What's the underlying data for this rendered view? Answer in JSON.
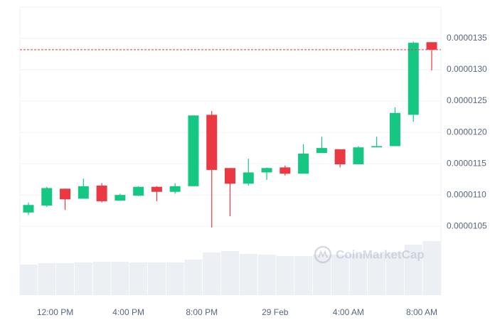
{
  "chart_data": {
    "type": "candlestick",
    "categories": [
      null,
      null,
      "12:00 PM",
      null,
      null,
      null,
      "4:00 PM",
      null,
      null,
      null,
      "8:00 PM",
      null,
      null,
      null,
      "29 Feb",
      null,
      null,
      null,
      "4:00 AM",
      null,
      null,
      null,
      "8:00 AM"
    ],
    "open": [
      1.072e-05,
      1.083e-05,
      1.11e-05,
      1.094e-05,
      1.115e-05,
      1.091e-05,
      1.099e-05,
      1.113e-05,
      1.105e-05,
      1.114e-05,
      1.228e-05,
      1.143e-05,
      1.118e-05,
      1.136e-05,
      1.144e-05,
      1.134e-05,
      1.167e-05,
      1.173e-05,
      1.149e-05,
      1.176e-05,
      1.178e-05,
      1.228e-05,
      1.344e-05
    ],
    "high": [
      1.088e-05,
      1.113e-05,
      1.11e-05,
      1.126e-05,
      1.119e-05,
      1.102e-05,
      1.114e-05,
      1.114e-05,
      1.119e-05,
      1.227e-05,
      1.234e-05,
      1.143e-05,
      1.158e-05,
      1.144e-05,
      1.147e-05,
      1.181e-05,
      1.193e-05,
      1.173e-05,
      1.178e-05,
      1.193e-05,
      1.24e-05,
      1.345e-05,
      1.344e-05
    ],
    "low": [
      1.068e-05,
      1.081e-05,
      1.076e-05,
      1.094e-05,
      1.088e-05,
      1.091e-05,
      1.098e-05,
      1.09e-05,
      1.102e-05,
      1.114e-05,
      1.048e-05,
      1.066e-05,
      1.115e-05,
      1.124e-05,
      1.131e-05,
      1.134e-05,
      1.167e-05,
      1.144e-05,
      1.149e-05,
      1.176e-05,
      1.178e-05,
      1.217e-05,
      1.299e-05
    ],
    "close": [
      1.084e-05,
      1.111e-05,
      1.093e-05,
      1.114e-05,
      1.09e-05,
      1.1e-05,
      1.113e-05,
      1.105e-05,
      1.114e-05,
      1.227e-05,
      1.14e-05,
      1.118e-05,
      1.136e-05,
      1.143e-05,
      1.134e-05,
      1.166e-05,
      1.175e-05,
      1.149e-05,
      1.176e-05,
      1.178e-05,
      1.231e-05,
      1.343e-05,
      1.332e-05
    ],
    "volumes": [
      43,
      45,
      45,
      46,
      47,
      47,
      46,
      46,
      46,
      50,
      60,
      62,
      58,
      57,
      55,
      55,
      57,
      57,
      58,
      58,
      60,
      71,
      76
    ],
    "up_color": "#16c784",
    "down_color": "#ea3943",
    "volume_color": "#eceff3",
    "current_price": 1.332e-05,
    "ylim": [
      9.4e-06,
      1.4e-05
    ],
    "yticks": [
      1.05e-05,
      {
        "value": 1.1e-05,
        "label": "0.0000110"
      },
      1.15e-05,
      {
        "value": 1.2e-05,
        "label": "0.0000120"
      },
      1.25e-05,
      {
        "value": 1.3e-05,
        "label": "0.0000130"
      },
      1.35e-05
    ],
    "grid": true,
    "watermark": "CoinMarketCap"
  }
}
